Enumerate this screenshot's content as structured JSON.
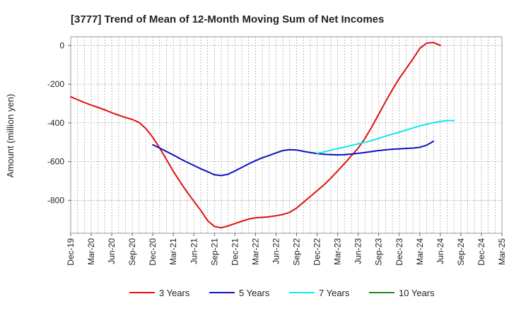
{
  "chart_data": {
    "type": "line",
    "title": "[3777]  Trend of Mean of 12-Month Moving Sum of Net Incomes",
    "ylabel": "Amount (million yen)",
    "xlabel": "",
    "x_tick_labels": [
      "Dec-19",
      "Mar-20",
      "Jun-20",
      "Sep-20",
      "Dec-20",
      "Mar-21",
      "Jun-21",
      "Sep-21",
      "Dec-21",
      "Mar-22",
      "Jun-22",
      "Sep-22",
      "Dec-22",
      "Mar-23",
      "Jun-23",
      "Sep-23",
      "Dec-23",
      "Mar-24",
      "Jun-24",
      "Sep-24",
      "Dec-24",
      "Mar-25"
    ],
    "y_ticks": [
      0,
      -200,
      -400,
      -600,
      -800
    ],
    "y_tick_labels": [
      "0",
      "-200",
      "-400",
      "-600",
      "-800"
    ],
    "ylim": [
      -970,
      45
    ],
    "grid": true,
    "legend_position": "bottom",
    "series": [
      {
        "name": "3 Years",
        "color": "#e01010",
        "start": "Dec-19",
        "values": [
          -265,
          -280,
          -295,
          -308,
          -320,
          -333,
          -347,
          -360,
          -372,
          -382,
          -398,
          -430,
          -475,
          -530,
          -590,
          -650,
          -705,
          -757,
          -805,
          -852,
          -905,
          -935,
          -942,
          -932,
          -920,
          -908,
          -897,
          -890,
          -888,
          -885,
          -880,
          -873,
          -862,
          -840,
          -810,
          -780,
          -750,
          -720,
          -686,
          -648,
          -610,
          -570,
          -530,
          -480,
          -420,
          -355,
          -290,
          -228,
          -170,
          -120,
          -70,
          -15,
          12,
          15,
          0
        ]
      },
      {
        "name": "5 Years",
        "color": "#1010c0",
        "start": "Dec-20",
        "values": [
          -513,
          -530,
          -548,
          -566,
          -585,
          -603,
          -620,
          -637,
          -652,
          -668,
          -672,
          -665,
          -648,
          -630,
          -612,
          -595,
          -580,
          -568,
          -555,
          -543,
          -538,
          -540,
          -547,
          -553,
          -558,
          -562,
          -564,
          -565,
          -564,
          -561,
          -557,
          -553,
          -548,
          -543,
          -539,
          -536,
          -534,
          -532,
          -530,
          -526,
          -515,
          -495
        ]
      },
      {
        "name": "7 Years",
        "color": "#10e8e8",
        "start": "Dec-22",
        "values": [
          -557,
          -550,
          -541,
          -533,
          -525,
          -517,
          -508,
          -500,
          -491,
          -480,
          -468,
          -458,
          -448,
          -437,
          -426,
          -415,
          -407,
          -399,
          -392,
          -388,
          -388
        ]
      },
      {
        "name": "10 Years",
        "color": "#228822",
        "start": "",
        "values": []
      }
    ]
  }
}
